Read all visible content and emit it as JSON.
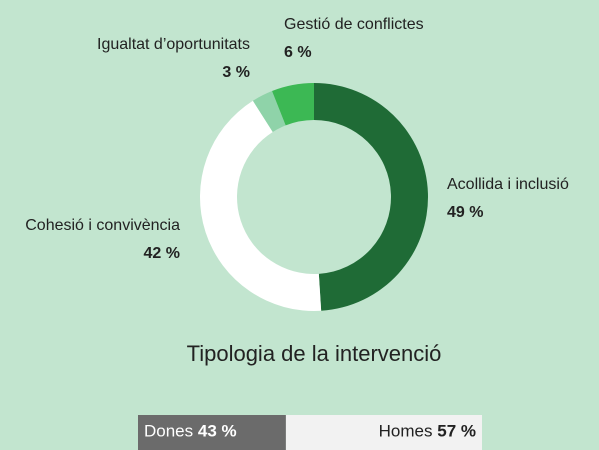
{
  "chart_data": [
    {
      "type": "donut",
      "title": "Tipologia de la intervenció",
      "categories": [
        "Acollida i inclusió",
        "Cohesió i convivència",
        "Igualtat d’oportunitats",
        "Gestió de conflictes"
      ],
      "values": [
        49,
        42,
        3,
        6
      ],
      "value_labels": [
        "49 %",
        "42 %",
        "3 %",
        "6 %"
      ],
      "colors": [
        "#1f6b36",
        "#ffffff",
        "#8fd3a9",
        "#3cb854"
      ]
    },
    {
      "type": "stacked-bar",
      "categories": [
        "Dones",
        "Homes"
      ],
      "values": [
        43,
        57
      ],
      "value_labels": [
        "43 %",
        "57 %"
      ],
      "colors": [
        "#6b6b6b",
        "#f2f2f2"
      ],
      "text_colors": [
        "#ffffff",
        "#222222"
      ]
    }
  ]
}
